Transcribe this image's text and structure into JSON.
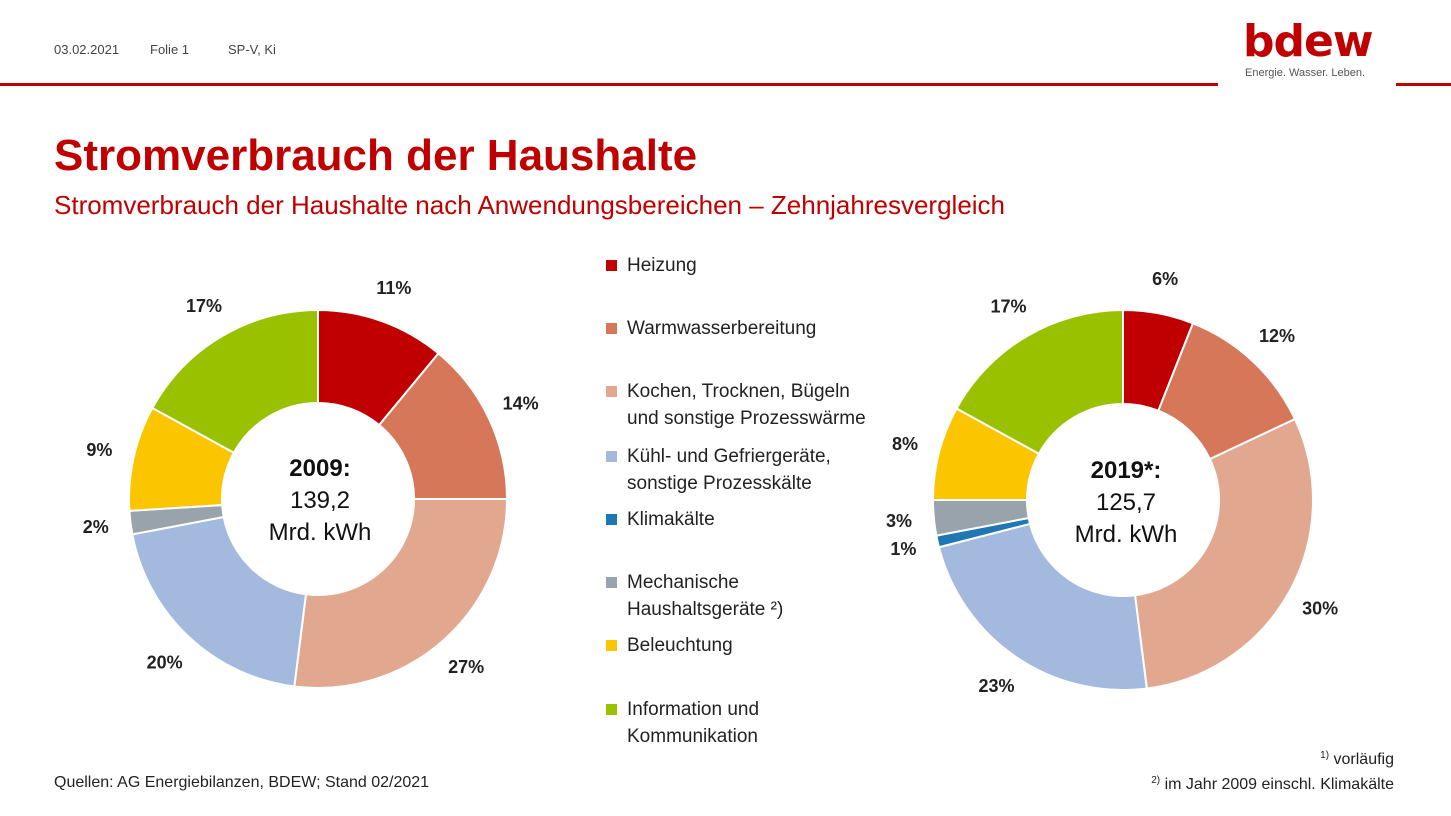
{
  "header": {
    "date": "03.02.2021",
    "slide": "Folie 1",
    "author": "SP-V, Ki"
  },
  "logo": {
    "word": "bdew",
    "tagline": "Energie. Wasser. Leben."
  },
  "title": "Stromverbrauch der Haushalte",
  "subtitle": "Stromverbrauch der Haushalte nach Anwendungsbereichen – Zehnjahresvergleich",
  "legend": [
    {
      "label": "Heizung",
      "color": "#c00000"
    },
    {
      "label": "Warmwasserbereitung",
      "color": "#d6775a"
    },
    {
      "label": "Kochen, Trocknen, Bügeln und sonstige Prozesswärme",
      "color": "#e2a78f"
    },
    {
      "label": "Kühl- und Gefriergeräte, sonstige Prozesskälte",
      "color": "#a3b9dd"
    },
    {
      "label": "Klimakälte",
      "color": "#1f77b4"
    },
    {
      "label": "Mechanische Haushaltsgeräte ²)",
      "color": "#98a3ac"
    },
    {
      "label": "Beleuchtung",
      "color": "#fbc600"
    },
    {
      "label": "Information und Kommunikation",
      "color": "#99c100"
    }
  ],
  "chart_data": [
    {
      "type": "pie",
      "center_year": "2009:",
      "center_value": "139,2",
      "center_unit": "Mrd. kWh",
      "categories": [
        "Heizung",
        "Warmwasserbereitung",
        "Kochen, Trocknen, Bügeln und sonstige Prozesswärme",
        "Kühl- und Gefriergeräte, sonstige Prozesskälte",
        "Mechanische Haushaltsgeräte ²)",
        "Beleuchtung",
        "Information und Kommunikation"
      ],
      "values": [
        11,
        14,
        27,
        20,
        2,
        9,
        17
      ],
      "colors": [
        "#c00000",
        "#d6775a",
        "#e2a78f",
        "#a3b9dd",
        "#98a3ac",
        "#fbc600",
        "#99c100"
      ],
      "labels": [
        "11%",
        "14%",
        "27%",
        "20%",
        "2%",
        "9%",
        "17%"
      ]
    },
    {
      "type": "pie",
      "center_year": "2019*:",
      "center_value": "125,7",
      "center_unit": "Mrd. kWh",
      "categories": [
        "Heizung",
        "Warmwasserbereitung",
        "Kochen, Trocknen, Bügeln und sonstige Prozesswärme",
        "Kühl- und Gefriergeräte, sonstige Prozesskälte",
        "Klimakälte",
        "Mechanische Haushaltsgeräte ²)",
        "Beleuchtung",
        "Information und Kommunikation"
      ],
      "values": [
        6,
        12,
        30,
        23,
        1,
        3,
        8,
        17
      ],
      "colors": [
        "#c00000",
        "#d6775a",
        "#e2a78f",
        "#a3b9dd",
        "#1f77b4",
        "#98a3ac",
        "#fbc600",
        "#99c100"
      ],
      "labels": [
        "6%",
        "12%",
        "30%",
        "23%",
        "1%",
        "3%",
        "8%",
        "17%"
      ]
    }
  ],
  "source": "Quellen: AG Energiebilanzen, BDEW; Stand 02/2021",
  "footnotes": [
    {
      "mark": "1)",
      "text": "vorläufig"
    },
    {
      "mark": "2)",
      "text": "im Jahr 2009 einschl. Klimakälte"
    }
  ]
}
